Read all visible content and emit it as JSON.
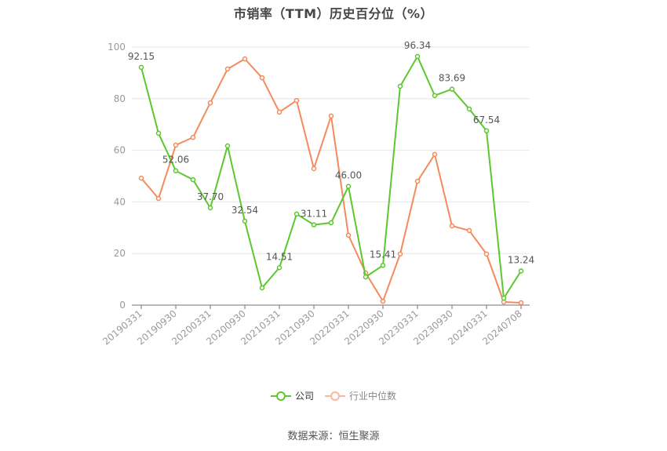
{
  "title": "市销率（TTM）历史百分位（%）",
  "legend": {
    "company_label": "公司",
    "industry_label": "行业中位数"
  },
  "source": "数据来源：恒生聚源",
  "colors": {
    "company": "#5cc72e",
    "industry": "#f58a5c",
    "grid": "#e0e6f1",
    "axis": "#6e7079",
    "tick_text": "#999999",
    "label_text": "#555555"
  },
  "chart_data": {
    "type": "line",
    "title": "市销率（TTM）历史百分位（%）",
    "xlabel": "",
    "ylabel": "",
    "ylim": [
      0,
      100
    ],
    "yticks": [
      0,
      20,
      40,
      60,
      80,
      100
    ],
    "grid": true,
    "legend_position": "bottom",
    "x_tick_labels": [
      "20190331",
      "20190930",
      "20200331",
      "20200930",
      "20210331",
      "20210930",
      "20220331",
      "20220930",
      "20230331",
      "20230930",
      "20240331",
      "20240708"
    ],
    "x": [
      "20190331",
      "20190630",
      "20190930",
      "20191231",
      "20200331",
      "20200630",
      "20200930",
      "20201231",
      "20210331",
      "20210630",
      "20210930",
      "20211231",
      "20220331",
      "20220630",
      "20220930",
      "20221231",
      "20230331",
      "20230630",
      "20230930",
      "20231231",
      "20240331",
      "20240630",
      "20240708"
    ],
    "series": [
      {
        "name": "公司",
        "values": [
          92.15,
          66.6,
          52.06,
          48.6,
          37.7,
          61.7,
          32.54,
          6.7,
          14.51,
          35.3,
          31.11,
          31.9,
          46.0,
          10.9,
          15.41,
          84.8,
          96.34,
          81.2,
          83.69,
          76.0,
          67.54,
          2.7,
          13.24
        ],
        "data_labels": {
          "0": "92.15",
          "2": "52.06",
          "4": "37.70",
          "6": "32.54",
          "8": "14.51",
          "10": "31.11",
          "12": "46.00",
          "14": "15.41",
          "16": "96.34",
          "18": "83.69",
          "20": "67.54",
          "22": "13.24"
        }
      },
      {
        "name": "行业中位数",
        "values": [
          49.2,
          41.3,
          62.0,
          65.0,
          78.4,
          91.5,
          95.4,
          88.1,
          74.8,
          79.3,
          52.9,
          73.3,
          27.1,
          12.5,
          1.5,
          19.8,
          48.0,
          58.4,
          30.7,
          28.9,
          19.8,
          1.2,
          0.9
        ]
      }
    ]
  }
}
